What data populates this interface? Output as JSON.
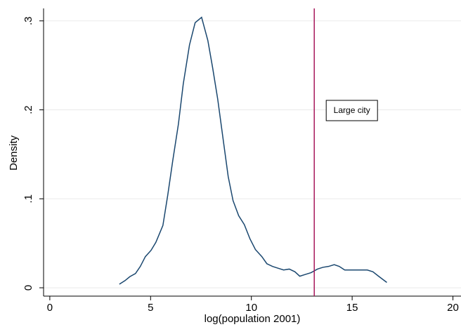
{
  "chart_data": {
    "type": "line",
    "x_label": "log(population 2001)",
    "y_label": "Density",
    "x": [
      3.45,
      3.73,
      3.97,
      4.25,
      4.49,
      4.74,
      5.02,
      5.26,
      5.61,
      5.85,
      6.1,
      6.38,
      6.62,
      6.93,
      7.21,
      7.53,
      7.84,
      8.08,
      8.33,
      8.61,
      8.85,
      9.09,
      9.37,
      9.65,
      9.93,
      10.2,
      10.52,
      10.77,
      11.05,
      11.32,
      11.6,
      11.88,
      12.16,
      12.4,
      12.68,
      12.96,
      13.28,
      13.55,
      13.83,
      14.11,
      14.36,
      14.63,
      14.91,
      15.19,
      15.47,
      15.75,
      16.03,
      16.31,
      16.72
    ],
    "series": [
      {
        "color": "#1a476f",
        "values": [
          0.004,
          0.008,
          0.0125,
          0.016,
          0.024,
          0.035,
          0.042,
          0.051,
          0.07,
          0.104,
          0.143,
          0.184,
          0.229,
          0.273,
          0.298,
          0.304,
          0.278,
          0.247,
          0.212,
          0.165,
          0.125,
          0.098,
          0.081,
          0.071,
          0.055,
          0.043,
          0.035,
          0.027,
          0.024,
          0.022,
          0.02,
          0.021,
          0.018,
          0.013,
          0.015,
          0.017,
          0.021,
          0.023,
          0.024,
          0.026,
          0.024,
          0.02,
          0.02,
          0.02,
          0.02,
          0.02,
          0.018,
          0.013,
          0.006
        ]
      }
    ],
    "xlim": [
      -0.31,
      20.4
    ],
    "ylim": [
      -0.0094,
      0.314
    ],
    "xticks": [
      0,
      5,
      10,
      15,
      20
    ],
    "yticks": [
      0,
      {
        "value": 0.1,
        "label": ".1"
      },
      {
        "value": 0.2,
        "label": ".2"
      },
      {
        "value": 0.3,
        "label": ".3"
      }
    ],
    "grid": true,
    "reference_line": {
      "x": 13.12,
      "label": "Large city",
      "color": "#a8185a"
    }
  }
}
